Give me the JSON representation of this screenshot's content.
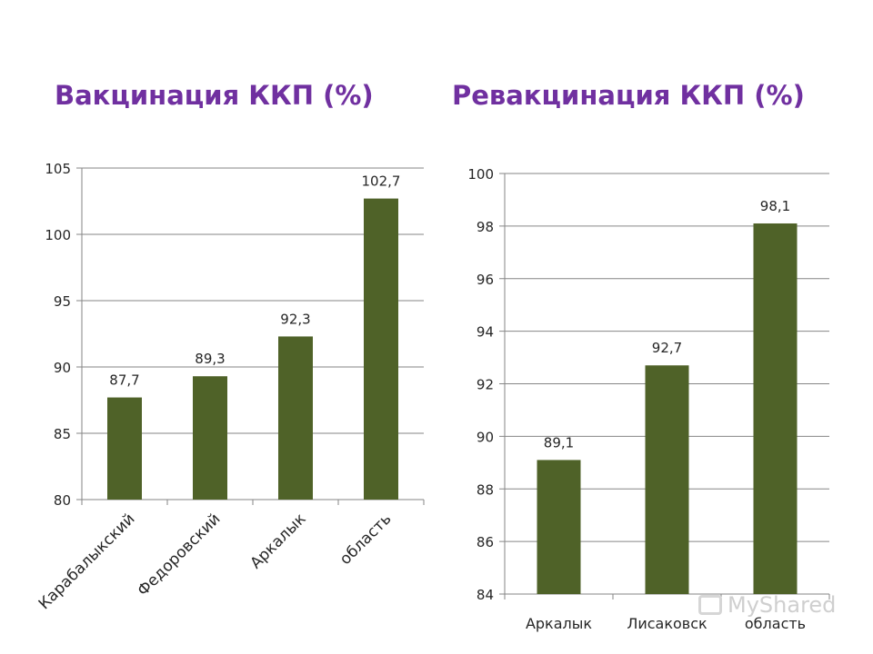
{
  "chart_data": [
    {
      "type": "bar",
      "title": "Вакцинация ККП (%)",
      "categories": [
        "Карабалыкский",
        "Федоровский",
        "Аркалык",
        "область"
      ],
      "values": [
        87.7,
        89.3,
        92.3,
        102.7
      ],
      "value_labels": [
        "87,7",
        "89,3",
        "92,3",
        "102,7"
      ],
      "ylim": [
        80,
        105
      ],
      "yticks": [
        80,
        85,
        90,
        95,
        100,
        105
      ],
      "grid": true,
      "xlabel_rotation": "diagonal",
      "bar_color": "#4f6228"
    },
    {
      "type": "bar",
      "title": "Ревакцинация ККП (%)",
      "categories": [
        "Аркалык",
        "Лисаковск",
        "область"
      ],
      "values": [
        89.1,
        92.7,
        98.1
      ],
      "value_labels": [
        "89,1",
        "92,7",
        "98,1"
      ],
      "ylim": [
        84,
        100
      ],
      "yticks": [
        84,
        86,
        88,
        90,
        92,
        94,
        96,
        98,
        100
      ],
      "grid": true,
      "xlabel_rotation": "horizontal",
      "bar_color": "#4f6228"
    }
  ],
  "colors": {
    "title": "#7030a0",
    "bar": "#4f6228",
    "grid": "#868686"
  },
  "watermark": {
    "text": "MyShared",
    "icon": "presentation-icon"
  }
}
